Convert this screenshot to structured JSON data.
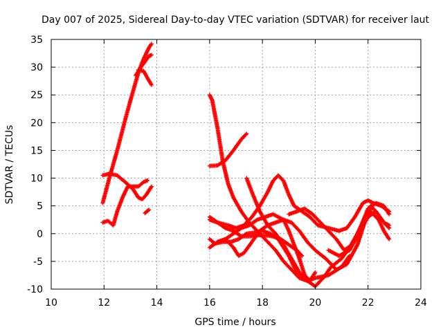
{
  "chart_data": {
    "type": "scatter",
    "title": "Day 007 of 2025, Sidereal Day-to-day VTEC variation (SDTVAR) for receiver laut",
    "xlabel": "GPS time / hours",
    "ylabel": "SDTVAR / TECUs",
    "xlim": [
      10,
      24
    ],
    "ylim": [
      -10,
      35
    ],
    "xticks": [
      "10",
      "12",
      "14",
      "16",
      "18",
      "20",
      "22",
      "24"
    ],
    "yticks": [
      "-10",
      "-5",
      "0",
      "5",
      "10",
      "15",
      "20",
      "25",
      "30",
      "35"
    ],
    "grid": true,
    "marker": "+",
    "series_color": "#ff0000",
    "series": [
      {
        "name": "s1",
        "x": [
          11.95,
          12.2,
          12.5,
          12.8,
          13.0,
          13.3,
          13.5,
          13.7,
          13.8
        ],
        "y": [
          5.5,
          10,
          15,
          20.5,
          24,
          29,
          31.5,
          33.5,
          34.2
        ]
      },
      {
        "name": "s2",
        "x": [
          13.2,
          13.4,
          13.55,
          13.7,
          13.8
        ],
        "y": [
          28.5,
          30,
          31,
          32,
          32.2
        ]
      },
      {
        "name": "s3",
        "x": [
          13.3,
          13.5,
          13.65,
          13.8
        ],
        "y": [
          29.5,
          29.3,
          28,
          26.8
        ]
      },
      {
        "name": "s4",
        "x": [
          11.95,
          12.2,
          12.5,
          12.8,
          13.1,
          13.3,
          13.45,
          13.6,
          13.8
        ],
        "y": [
          10.5,
          10.8,
          10.5,
          9.3,
          8,
          6.5,
          6.2,
          7,
          8.5
        ]
      },
      {
        "name": "s5",
        "x": [
          11.95,
          12.15,
          12.35,
          12.5,
          12.7,
          12.9,
          13.1,
          13.3,
          13.5,
          13.65
        ],
        "y": [
          2,
          2.3,
          1.5,
          4,
          6.5,
          8.5,
          8.5,
          8.5,
          9.3,
          9.6
        ]
      },
      {
        "name": "s6",
        "x": [
          13.55,
          13.7
        ],
        "y": [
          3.7,
          4.3
        ]
      },
      {
        "name": "s7",
        "x": [
          16.0,
          16.1,
          16.3,
          16.5,
          16.7,
          16.9,
          17.2,
          17.5,
          17.8,
          18.0,
          18.2,
          18.5,
          18.8,
          19.1,
          19.4,
          19.7,
          20.0,
          20.5,
          21.0,
          21.3
        ],
        "y": [
          25,
          24,
          19,
          13,
          9,
          6.5,
          4,
          2,
          0.5,
          -0.5,
          -1.5,
          -3,
          -5,
          -6.5,
          -8,
          -8.5,
          -8,
          -7.5,
          -6,
          -4
        ]
      },
      {
        "name": "s8",
        "x": [
          16.0,
          16.3,
          16.6,
          16.9,
          17.2,
          17.4
        ],
        "y": [
          12.2,
          12.3,
          13.2,
          15,
          17,
          18
        ]
      },
      {
        "name": "s9",
        "x": [
          16.0,
          16.3,
          16.6,
          16.9,
          17.2,
          17.5,
          17.8,
          18.1,
          18.4,
          18.7,
          19.0,
          19.3,
          19.5
        ],
        "y": [
          3,
          2,
          1,
          0.5,
          -0.5,
          -0.5,
          -0.3,
          -0.3,
          -0.5,
          -1,
          -2,
          -3,
          -4
        ]
      },
      {
        "name": "s10",
        "x": [
          16.0,
          16.2,
          16.5,
          16.8,
          17.1,
          17.4,
          17.7,
          18.0,
          18.3,
          18.6,
          18.8,
          19.0,
          19.2,
          19.4,
          19.6
        ],
        "y": [
          -1,
          -1.8,
          -1.5,
          -1.5,
          -1,
          0,
          0.2,
          0.5,
          0,
          -1,
          -2.5,
          -4,
          -6,
          -7.5,
          -8
        ]
      },
      {
        "name": "s11",
        "x": [
          16.0,
          16.3,
          16.6,
          16.9,
          17.1,
          17.3,
          17.6,
          17.9,
          18.2,
          18.5,
          18.8,
          19.1,
          19.4,
          19.7,
          20.0,
          20.4,
          20.8,
          21.2,
          21.6,
          21.9,
          22.1
        ],
        "y": [
          -2.5,
          -1.5,
          -1,
          -2.5,
          -4,
          -3.5,
          -1.5,
          0.5,
          1.5,
          2,
          2.5,
          2,
          0.5,
          -1.5,
          -3,
          -4.5,
          -6.5,
          -5.5,
          -2,
          2.5,
          4.5
        ]
      },
      {
        "name": "s12",
        "x": [
          16.3,
          16.6,
          16.9,
          17.2,
          17.5,
          17.8,
          18.1,
          18.4,
          18.6,
          18.8,
          19.0,
          19.2,
          19.4,
          19.6,
          19.8,
          20.0
        ],
        "y": [
          -1.5,
          -1,
          0,
          1,
          1.5,
          2.5,
          3,
          3.5,
          3,
          2.5,
          0.5,
          -2,
          -4.5,
          -7.5,
          -8.5,
          -7
        ]
      },
      {
        "name": "s13",
        "x": [
          16.0,
          16.3,
          16.7,
          17.0,
          17.3,
          17.6,
          17.9,
          18.2,
          18.4,
          18.6,
          18.8,
          19.0,
          19.2,
          19.5,
          19.8,
          20.1,
          20.5,
          20.9,
          21.2,
          21.5,
          21.8,
          22.0,
          22.2,
          22.5,
          22.8
        ],
        "y": [
          2.5,
          2,
          1.5,
          1,
          1.5,
          3,
          5,
          7.5,
          9.5,
          10.5,
          9.5,
          7,
          5,
          4,
          3,
          1.5,
          1,
          0.5,
          1,
          3,
          5.5,
          6,
          5.5,
          5,
          4
        ]
      },
      {
        "name": "s14",
        "x": [
          17.4,
          17.6,
          17.9,
          18.2,
          18.5,
          18.8,
          19.1,
          19.4,
          19.7,
          20.0,
          20.3,
          20.6,
          21.0,
          21.3,
          21.6,
          21.9,
          22.1,
          22.3,
          22.6,
          22.8
        ],
        "y": [
          10,
          7.5,
          4,
          1.5,
          0,
          -2,
          -4.5,
          -7,
          -8.5,
          -9.5,
          -8,
          -6,
          -4.5,
          -2.5,
          0,
          3,
          5,
          4,
          2,
          1
        ]
      },
      {
        "name": "s15",
        "x": [
          19.0,
          19.3,
          19.6,
          19.9,
          20.2,
          20.5,
          20.8,
          21.1,
          21.4,
          21.7,
          22.0,
          22.3,
          22.6,
          22.8
        ],
        "y": [
          3.5,
          4,
          4.5,
          3.5,
          2,
          0.5,
          -1,
          -3,
          -2,
          1,
          4.5,
          5.5,
          5,
          3.5
        ]
      },
      {
        "name": "s16",
        "x": [
          20.5,
          20.9,
          21.3,
          21.7,
          22.0,
          22.3,
          22.6,
          22.8
        ],
        "y": [
          -3,
          -4,
          -3,
          0.5,
          3,
          4,
          2,
          1.5
        ]
      },
      {
        "name": "s17",
        "x": [
          21.5,
          21.8,
          22.1,
          22.4,
          22.6,
          22.8
        ],
        "y": [
          -1,
          2,
          4,
          2.5,
          0.5,
          -1
        ]
      }
    ]
  }
}
